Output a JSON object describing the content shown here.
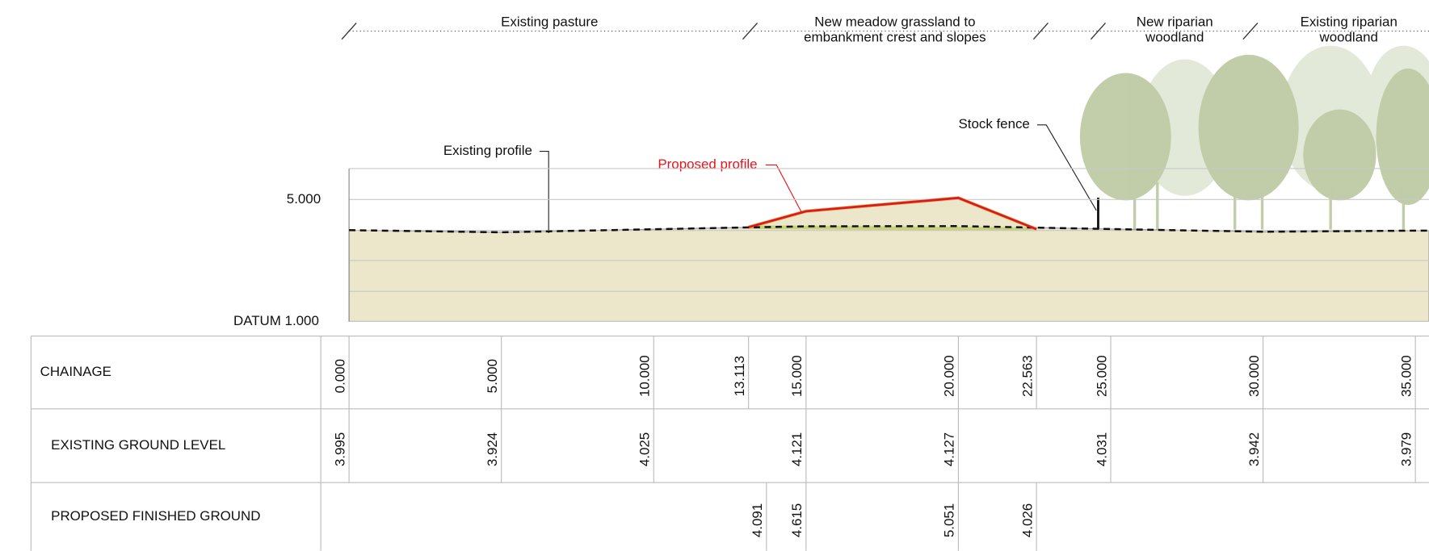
{
  "zones": [
    {
      "label": "Existing pasture"
    },
    {
      "label": "New meadow grassland to embankment crest and slopes"
    },
    {
      "label": "New riparian woodland"
    },
    {
      "label": "Existing riparian woodland"
    }
  ],
  "annotations": {
    "existing_profile": "Existing profile",
    "proposed_profile": "Proposed profile",
    "stock_fence": "Stock fence"
  },
  "levels": {
    "upper": "5.000",
    "datum": "DATUM 1.000"
  },
  "table": {
    "rows": [
      {
        "label": "CHAINAGE",
        "cells": [
          "0.000",
          "5.000",
          "10.000",
          "13.113",
          "15.000",
          "20.000",
          "22.563",
          "25.000",
          "30.000",
          "35.000"
        ]
      },
      {
        "label": "EXISTING GROUND LEVEL",
        "cells": [
          "3.995",
          "3.924",
          "4.025",
          null,
          "4.121",
          "4.127",
          null,
          "4.031",
          "3.942",
          "3.979"
        ]
      },
      {
        "label": "PROPOSED FINISHED GROUND",
        "cells": [
          null,
          null,
          null,
          "4.091",
          "4.615",
          "5.051",
          "4.026",
          null,
          null,
          null
        ]
      }
    ]
  }
}
